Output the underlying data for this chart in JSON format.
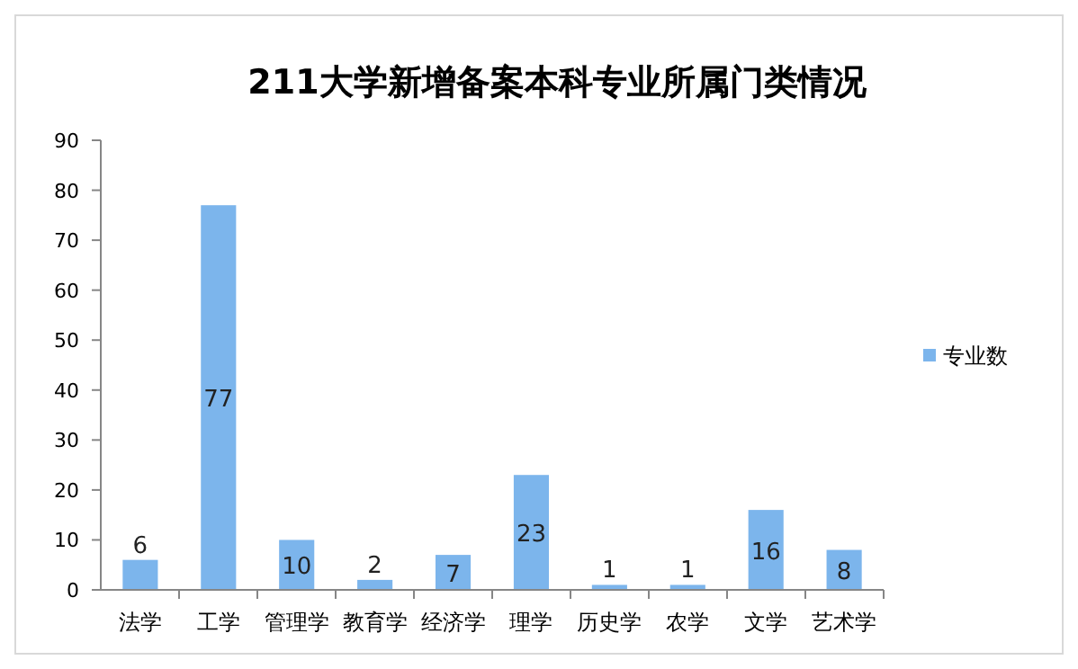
{
  "chart_data": {
    "type": "bar",
    "title": "211大学新增备案本科专业所属门类情况",
    "categories": [
      "法学",
      "工学",
      "管理学",
      "教育学",
      "经济学",
      "理学",
      "历史学",
      "农学",
      "文学",
      "艺术学"
    ],
    "series": [
      {
        "name": "专业数",
        "color": "#7cb5ec",
        "values": [
          6,
          77,
          10,
          2,
          7,
          23,
          1,
          1,
          16,
          8
        ]
      }
    ],
    "ylim": [
      0,
      90
    ],
    "yticks": [
      0,
      10,
      20,
      30,
      40,
      50,
      60,
      70,
      80,
      90
    ],
    "grid": false,
    "legend": "right",
    "data_labels": true
  }
}
